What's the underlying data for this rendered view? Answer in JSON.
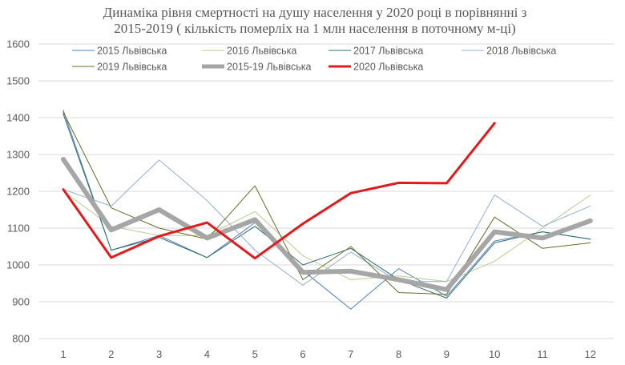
{
  "chart_data": {
    "type": "line",
    "title": "Динаміка рівня смертності на душу населення у 2020 році в порівнянні з 2015-2019 ( кількість померліх на 1 млн населення в поточному м-ці)",
    "title_lines": [
      "Динаміка рівня смертності на душу населення у 2020 році в порівнянні з",
      "2015-2019 ( кількість померліх на 1 млн населення в поточному м-ці)"
    ],
    "xlabel": "",
    "ylabel": "",
    "x": [
      1,
      2,
      3,
      4,
      5,
      6,
      7,
      8,
      9,
      10,
      11,
      12
    ],
    "x_tick_labels": [
      "1",
      "2",
      "3",
      "4",
      "5",
      "6",
      "7",
      "8",
      "9",
      "10",
      "11",
      "12"
    ],
    "ylim": [
      800,
      1600
    ],
    "y_ticks": [
      800,
      900,
      1000,
      1100,
      1200,
      1300,
      1400,
      1500,
      1600
    ],
    "grid": "horizontal",
    "legend_position": "top",
    "series": [
      {
        "name": "2015 Львівська",
        "color": "#4f7fbf",
        "width": 1,
        "values": [
          1420,
          1040,
          1080,
          1020,
          1115,
          985,
          880,
          990,
          915,
          1065,
          1090,
          1070
        ]
      },
      {
        "name": "2016 Львівська",
        "color": "#b8cc8e",
        "width": 1,
        "values": [
          1200,
          1105,
          1080,
          1080,
          1145,
          1025,
          960,
          970,
          955,
          1010,
          1100,
          1190
        ]
      },
      {
        "name": "2017 Львівська",
        "color": "#2e6f6f",
        "width": 1,
        "values": [
          1410,
          1040,
          1075,
          1020,
          1105,
          1000,
          1045,
          960,
          910,
          1060,
          1090,
          1070
        ]
      },
      {
        "name": "2018 Львівська",
        "color": "#8fb0d6",
        "width": 1,
        "values": [
          1205,
          1160,
          1285,
          1175,
          1040,
          945,
          1035,
          955,
          955,
          1190,
          1105,
          1160
        ]
      },
      {
        "name": "2019 Львівська",
        "color": "#6b6b2a",
        "width": 1,
        "values": [
          1415,
          1155,
          1100,
          1070,
          1215,
          960,
          1050,
          925,
          920,
          1130,
          1045,
          1060
        ]
      },
      {
        "name": "2015-19 Львівська",
        "color": "#a6a6a6",
        "width": 6,
        "values": [
          1287,
          1095,
          1150,
          1073,
          1123,
          980,
          983,
          960,
          933,
          1090,
          1073,
          1120
        ]
      },
      {
        "name": "2020 Львівська",
        "color": "#e31a1c",
        "width": 3,
        "values": [
          1205,
          1020,
          1078,
          1115,
          1018,
          1112,
          1195,
          1223,
          1222,
          1385,
          null,
          null
        ]
      }
    ]
  }
}
